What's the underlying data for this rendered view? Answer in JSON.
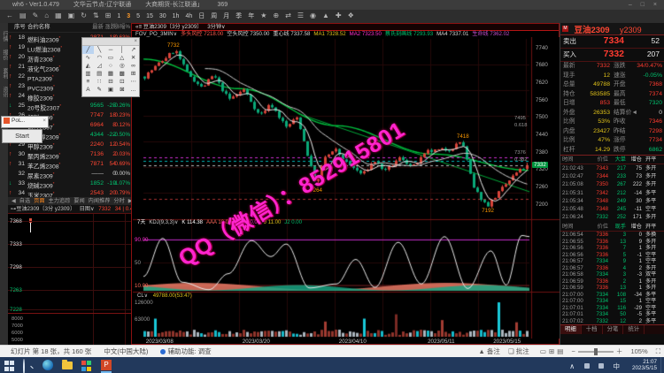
{
  "window": {
    "title_left": "wh6 - Ver1.0.479",
    "node1": "文华云节点-辽宁联通",
    "node2": "大商期货-长江联通」",
    "ping": "369",
    "controls": "– □ ×"
  },
  "toolbar": {
    "icons": [
      "←",
      "▤",
      "✎",
      "⌂",
      "▦",
      "▣",
      "↻",
      "⇅",
      "⊞"
    ],
    "periods": [
      "1",
      "3",
      "5",
      "15",
      "30",
      "1h",
      "4h",
      "日",
      "周",
      "月",
      "季",
      "年"
    ],
    "active_period": "3",
    "right_icons": [
      "★",
      "⊕",
      "⇄",
      "☰",
      "◉",
      "▲",
      "✚",
      "❖"
    ]
  },
  "leftstrip": {
    "tabs": [
      "行情",
      "报价",
      "套利",
      "资讯"
    ]
  },
  "overlays": {
    "pol_title": "PoL..",
    "pol_close": "×",
    "start_label": "Start"
  },
  "palette": {
    "close": "×",
    "glyphs": [
      "╱",
      "╲",
      "─",
      "│",
      "↗",
      "∿",
      "◠",
      "▭",
      "△",
      "✕",
      "◭",
      "◿",
      "○",
      "◎",
      "∞",
      "▥",
      "▤",
      "▦",
      "▩",
      "⊞",
      "≡",
      "∷",
      "⊟",
      "⊡",
      "⋯",
      "A",
      "✎",
      "▣",
      "⊠",
      "…"
    ]
  },
  "sidebar": {
    "headers": [
      "序号",
      "合约名称",
      "最新",
      "涨跌",
      "涨幅%"
    ],
    "rows": [
      {
        "no": "18",
        "name": "燃料油2309",
        "last": "2871",
        "chg": "18",
        "pct": "0.63%",
        "dir": "up"
      },
      {
        "no": "19",
        "name": "LU燃油2308",
        "last": "3745",
        "chg": "29",
        "pct": "0.78%",
        "dir": "up"
      },
      {
        "no": "20",
        "name": "沥青2308",
        "last": "3668",
        "chg": "24",
        "pct": "0.66%",
        "dir": "up"
      },
      {
        "no": "21",
        "name": "液化气2306",
        "last": "4121",
        "chg": "35",
        "pct": "0.86%",
        "dir": "up"
      },
      {
        "no": "22",
        "name": "PTA2309",
        "last": "5248",
        "chg": "36",
        "pct": "0.69%",
        "dir": "up"
      },
      {
        "no": "23",
        "name": "PVC2309",
        "last": "5851",
        "chg": "21",
        "pct": "0.36%",
        "dir": "up"
      },
      {
        "no": "24",
        "name": "橡胶2309",
        "last": "12225",
        "chg": "85",
        "pct": "0.70%",
        "dir": "up"
      },
      {
        "no": "25",
        "name": "20号胶2307",
        "last": "9565",
        "chg": "-25",
        "pct": "-0.26%",
        "dir": "dn"
      },
      {
        "no": "26",
        "name": "塑料2309",
        "last": "7747",
        "chg": "18",
        "pct": "0.23%",
        "dir": "up"
      },
      {
        "no": "27",
        "name": "短纤2307",
        "last": "6964",
        "chg": "8",
        "pct": "0.12%",
        "dir": "up"
      },
      {
        "no": "28",
        "name": "乙二醇2309",
        "last": "4344",
        "chg": "-22",
        "pct": "-0.50%",
        "dir": "dn"
      },
      {
        "no": "29",
        "name": "甲醇2309",
        "last": "2240",
        "chg": "12",
        "pct": "0.54%",
        "dir": "up"
      },
      {
        "no": "30",
        "name": "聚丙烯2309",
        "last": "7136",
        "chg": "2",
        "pct": "0.03%",
        "dir": "up"
      },
      {
        "no": "31",
        "name": "苯乙烯2308",
        "last": "7871",
        "chg": "54",
        "pct": "0.69%",
        "dir": "up"
      },
      {
        "no": "32",
        "name": "尿素2309",
        "last": "——",
        "chg": "0",
        "pct": "0.00%",
        "dir": "fl"
      },
      {
        "no": "33",
        "name": "烧碱2309",
        "last": "1852",
        "chg": "-19",
        "pct": "-1.07%",
        "dir": "dn"
      },
      {
        "no": "34",
        "name": "玉米2307",
        "last": "2543",
        "chg": "20",
        "pct": "0.79%",
        "dir": "up"
      }
    ],
    "tabs": {
      "prev": "◀",
      "items": [
        "自选",
        "页面",
        "主力追踪",
        "要闻",
        "内闻推荐",
        "分时"
      ],
      "active": 1,
      "next": "▶"
    }
  },
  "mini": {
    "title": "⊶豆油2309〔3分 y2309〕",
    "period": "日图∨",
    "last": "7332",
    "chg": "34 | 0.47%",
    "ylabels": [
      {
        "t": "7368",
        "c": "#dddddd"
      },
      {
        "t": "7333",
        "c": "#dddddd"
      },
      {
        "t": "7298",
        "c": "#dddddd"
      },
      {
        "t": "7263",
        "c": "#00c26e"
      },
      {
        "t": "7228",
        "c": "#00c26e"
      }
    ],
    "sub_ylabels": [
      "8000",
      "7000",
      "6000",
      "5000"
    ]
  },
  "chart_data": {
    "type": "candlestick",
    "symbol": "豆油2309",
    "code": "y2309",
    "tab_label": "«≡ 豆油2309〔3分 y2309〕",
    "period_label": "3分钟∨",
    "info": [
      [
        "FOV_PO_3MIN∨",
        "#cfcfcf"
      ],
      [
        "多头风控 7218.00",
        "#ff5a4d"
      ],
      [
        "空头风控 7350.00",
        "#d8d8d8"
      ],
      [
        "重心线 7337.58",
        "#d8d8d8"
      ],
      [
        "MA1 7328.52",
        "#e0c21a"
      ],
      [
        "MA2 7323.50",
        "#ff2fd0"
      ],
      [
        "蔡氏刻画线 7293.93",
        "#00c26e"
      ],
      [
        "MA4 7337.01",
        "#d8d8d8"
      ],
      [
        "生命线 7362.02",
        "#c24fd0"
      ]
    ],
    "price_range": [
      7150,
      7770
    ],
    "axis_ticks": [
      7740,
      7680,
      7620,
      7560,
      7500,
      7440,
      7380,
      7320,
      7260,
      7200
    ],
    "current_price": 7332,
    "price_tags": [
      {
        "price": 7332,
        "label": "7332"
      }
    ],
    "hlines": [
      {
        "price": 7362,
        "color": "#cc2fd0",
        "dash": true
      },
      {
        "price": 7350,
        "color": "#00b8b8",
        "dash": true
      },
      {
        "price": 7332,
        "color": "#bbbbbb",
        "dash": true
      },
      {
        "price": 7218,
        "color": "#aa3333",
        "dash": true
      }
    ],
    "markers": [
      {
        "f": 0.08,
        "price": 7732,
        "label": "7732",
        "above": true
      },
      {
        "f": 0.45,
        "price": 7264,
        "label": "7264",
        "above": false
      },
      {
        "f": 0.83,
        "price": 7418,
        "label": "7418",
        "above": true
      },
      {
        "f": 0.895,
        "price": 7192,
        "label": "7192",
        "above": false
      }
    ],
    "fib_labels": [
      {
        "price": 7495,
        "label": "7495"
      },
      {
        "price": 7470,
        "label": "0.618"
      },
      {
        "price": 7376,
        "label": "7376"
      },
      {
        "price": 7352,
        "label": "0.382"
      }
    ],
    "anchors": [
      [
        0,
        7640
      ],
      [
        0.05,
        7700
      ],
      [
        0.08,
        7732
      ],
      [
        0.11,
        7655
      ],
      [
        0.15,
        7600
      ],
      [
        0.18,
        7645
      ],
      [
        0.22,
        7560
      ],
      [
        0.26,
        7595
      ],
      [
        0.3,
        7505
      ],
      [
        0.33,
        7545
      ],
      [
        0.37,
        7465
      ],
      [
        0.4,
        7500
      ],
      [
        0.44,
        7300
      ],
      [
        0.45,
        7264
      ],
      [
        0.47,
        7360
      ],
      [
        0.5,
        7385
      ],
      [
        0.53,
        7340
      ],
      [
        0.57,
        7300
      ],
      [
        0.6,
        7350
      ],
      [
        0.63,
        7312
      ],
      [
        0.67,
        7362
      ],
      [
        0.7,
        7325
      ],
      [
        0.74,
        7380
      ],
      [
        0.8,
        7390
      ],
      [
        0.83,
        7418
      ],
      [
        0.86,
        7255
      ],
      [
        0.895,
        7192
      ],
      [
        0.93,
        7245
      ],
      [
        0.97,
        7305
      ],
      [
        1,
        7332
      ]
    ],
    "greenline": [
      [
        0,
        7700
      ],
      [
        0.25,
        7598
      ],
      [
        0.5,
        7470
      ],
      [
        0.75,
        7372
      ],
      [
        1,
        7316
      ]
    ],
    "trendline": {
      "from": [
        0.4,
        7512
      ],
      "to": [
        1,
        7242
      ],
      "color": "#00a838"
    },
    "ma_windows": [
      5,
      18
    ],
    "seed": 7,
    "osc": {
      "label": "7天",
      "header": [
        [
          "KDJ(9,3,3)∨",
          "#cfcfcf"
        ],
        [
          "K 114.38",
          "#ffffff"
        ],
        [
          "AAA 10.00",
          "#ff6a5a"
        ],
        [
          "BBB 90.00",
          "#ff2fd0"
        ],
        [
          "J 11.00",
          "#e0c21a"
        ],
        [
          "J2 0.00",
          "#00c26e"
        ]
      ],
      "ylabels": [
        {
          "v": 90,
          "t": "90.00",
          "c": "#ff2fd0"
        },
        {
          "v": 50,
          "t": "50",
          "c": "#999999"
        },
        {
          "v": 10,
          "t": "10.00",
          "c": "#ff6a5a"
        }
      ],
      "anchors": [
        [
          0,
          25
        ],
        [
          0.05,
          92
        ],
        [
          0.1,
          15
        ],
        [
          0.17,
          2
        ],
        [
          0.22,
          30
        ],
        [
          0.28,
          88
        ],
        [
          0.33,
          60
        ],
        [
          0.37,
          82
        ],
        [
          0.43,
          5
        ],
        [
          0.5,
          12
        ],
        [
          0.55,
          55
        ],
        [
          0.6,
          6
        ],
        [
          0.66,
          85
        ],
        [
          0.72,
          12
        ],
        [
          0.78,
          95
        ],
        [
          0.84,
          4
        ],
        [
          0.9,
          70
        ],
        [
          0.94,
          10
        ],
        [
          0.98,
          97
        ],
        [
          1,
          95
        ]
      ]
    },
    "volume": {
      "header_label": "CL∨",
      "header_value": "49788.00(53:47)",
      "ylabels": [
        {
          "t": "126000",
          "f": 0.06
        },
        {
          "t": "63000",
          "f": 0.5
        }
      ],
      "spikes": [
        {
          "f": 0.03,
          "h": 0.5,
          "c": "#19c8d8"
        },
        {
          "f": 0.47,
          "h": 0.42,
          "c": "#a33c32"
        },
        {
          "f": 0.57,
          "h": 0.5,
          "c": "#19c8d8"
        },
        {
          "f": 0.66,
          "h": 0.62,
          "c": "#7a2a24"
        },
        {
          "f": 0.78,
          "h": 0.46,
          "c": "#a33c32"
        },
        {
          "f": 0.93,
          "h": 0.95,
          "c": "#19c8d8"
        },
        {
          "f": 0.97,
          "h": 0.4,
          "c": "#a33c32"
        }
      ]
    },
    "dates": [
      {
        "t": "2023/03/08",
        "f": 0.05
      },
      {
        "t": "2023/03/20",
        "f": 0.3
      },
      {
        "t": "2023/04/10",
        "f": 0.55
      },
      {
        "t": "2023/05/11",
        "f": 0.78
      },
      {
        "t": "2023/05/15",
        "f": 0.95
      }
    ],
    "watermark": "QQ（微信）：852915801"
  },
  "rightpanel": {
    "title": {
      "icon": "M",
      "name": "豆油2309",
      "code": "y2309"
    },
    "ask": {
      "label": "卖出",
      "price": "7334",
      "vol": "52"
    },
    "bid": {
      "label": "买入",
      "price": "7332",
      "vol": "207"
    },
    "stats": [
      [
        "最新",
        "7332",
        "cr",
        "涨跌",
        "34/0.47%",
        "cr"
      ],
      [
        "现手",
        "12",
        "cy",
        "速涨",
        "-0.05%",
        "cg"
      ],
      [
        "总量",
        "49788",
        "cy",
        "开盘",
        "7368",
        "cr"
      ],
      [
        "持仓",
        "583585",
        "cy",
        "最高",
        "7374",
        "cr"
      ],
      [
        "日增",
        "853",
        "cr",
        "最低",
        "7320",
        "cg"
      ],
      [
        "外盘",
        "26353",
        "cy",
        "结算价◄",
        "0",
        "cw"
      ],
      [
        "比例",
        "53%",
        "cy",
        "昨收",
        "7346",
        "cr"
      ],
      [
        "内盘",
        "23427",
        "cy",
        "昨结",
        "7298",
        "cr"
      ],
      [
        "比例",
        "47%",
        "cy",
        "涨停",
        "7734",
        "cr"
      ],
      [
        "杠杆",
        "14.29",
        "cy",
        "跌停",
        "6862",
        "cg"
      ]
    ],
    "table1": {
      "headers": [
        "时间",
        "价位",
        "大单",
        "增仓",
        "开平"
      ],
      "rows": [
        [
          "21:02:43",
          "7343",
          "217",
          "75",
          "多开",
          "cr"
        ],
        [
          "21:02:47",
          "7344",
          "233",
          "73",
          "多开",
          "cr"
        ],
        [
          "21:05:08",
          "7350",
          "267",
          "222",
          "多开",
          "cr"
        ],
        [
          "21:05:31",
          "7342",
          "212",
          "-14",
          "多平",
          "cr"
        ],
        [
          "21:05:34",
          "7348",
          "249",
          "30",
          "多平",
          "cr"
        ],
        [
          "21:05:48",
          "7348",
          "245",
          "-11",
          "空平",
          "cr"
        ],
        [
          "21:06:24",
          "7332",
          "252",
          "171",
          "多开",
          "cg"
        ]
      ]
    },
    "table2": {
      "headers": [
        "时间",
        "价位",
        "现手",
        "增仓",
        "开平"
      ],
      "rows": [
        [
          "21:06:54",
          "7336",
          "3",
          "0",
          "多换",
          "cr"
        ],
        [
          "21:06:55",
          "7336",
          "13",
          "9",
          "多开",
          "cr"
        ],
        [
          "21:06:56",
          "7336",
          "7",
          "1",
          "多开",
          "cr"
        ],
        [
          "21:06:56",
          "7336",
          "5",
          "-1",
          "空平",
          "cr"
        ],
        [
          "21:06:57",
          "7334",
          "9",
          "1",
          "空平",
          "cg"
        ],
        [
          "21:06:57",
          "7336",
          "4",
          "2",
          "多开",
          "cr"
        ],
        [
          "21:06:58",
          "7334",
          "3",
          "-3",
          "双平",
          "cg"
        ],
        [
          "21:06:59",
          "7336",
          "2",
          "1",
          "多开",
          "cr"
        ],
        [
          "21:06:59",
          "7336",
          "13",
          "1",
          "多开",
          "cr"
        ],
        [
          "21:07:00",
          "7334",
          "108",
          "-34",
          "多平",
          "cg"
        ],
        [
          "21:07:00",
          "7334",
          "15",
          "1",
          "空平",
          "cg"
        ],
        [
          "21:07:01",
          "7334",
          "116",
          "-29",
          "空平",
          "cg"
        ],
        [
          "21:07:01",
          "7334",
          "50",
          "-5",
          "多平",
          "cg"
        ],
        [
          "21:07:02",
          "7332",
          "12",
          "2",
          "多平",
          "cg"
        ]
      ]
    },
    "tabs": {
      "items": [
        "明细",
        "十档",
        "分笔",
        "统计"
      ],
      "active": 0
    }
  },
  "statusbar": {
    "slides": "幻灯片 第 18 张，共 160 张",
    "lang": "中文(中国大陆)",
    "access": "辅助功能: 调查",
    "notes": "▲ 备注",
    "comments": "❏ 批注",
    "view_icons": [
      "▭",
      "⊞",
      "▤"
    ],
    "minus": "−",
    "plus": "＋",
    "zoom": "105%",
    "fit": "⛶"
  },
  "taskbar": {
    "input": "中",
    "time": "21:07",
    "date": "2023/5/15"
  }
}
